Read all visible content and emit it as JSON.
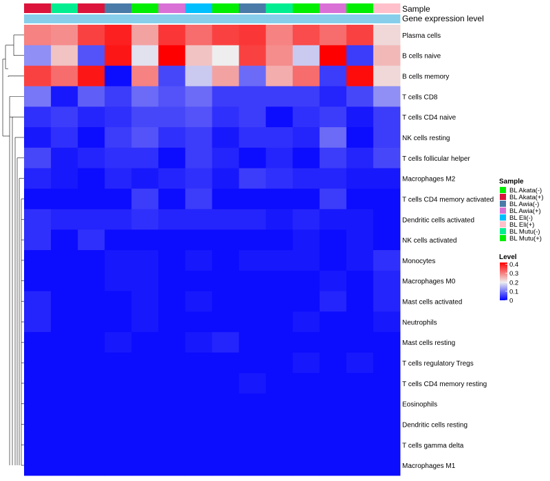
{
  "chart_data": {
    "type": "heatmap",
    "title": "",
    "annotation_labels": [
      "Sample",
      "Gene expression level"
    ],
    "samples": [
      "BL Akata(+)",
      "BL Mutu(-)",
      "BL Akata(+)",
      "BL Awia(-)",
      "BL Akata(-)",
      "BL Awia(+)",
      "BL Eli(-)",
      "BL Mutu(+)",
      "BL Awia(-)",
      "BL Mutu(-)",
      "BL Akata(-)",
      "BL Awia(+)",
      "BL Mutu(+)",
      "BL Eli(+)"
    ],
    "sample_annotation_colors": [
      "#DC143C",
      "#00EE90",
      "#DC143C",
      "#4A7BA8",
      "#00EE00",
      "#DA70D6",
      "#00BFFF",
      "#00EE00",
      "#4A7BA8",
      "#00EE90",
      "#00EE00",
      "#DA70D6",
      "#00EE00",
      "#FFC0CB"
    ],
    "gene_expression_level_colors": [
      "#87CEEB",
      "#87CEEB",
      "#87CEEB",
      "#87CEEB",
      "#87CEEB",
      "#87CEEB",
      "#87CEEB",
      "#87CEEB",
      "#87CEEB",
      "#87CEEB",
      "#87CEEB",
      "#87CEEB",
      "#87CEEB",
      "#87CEEB"
    ],
    "rows": [
      "Plasma cells",
      "B cells naive",
      "B cells memory",
      "T cells CD8",
      "T cells CD4 naive",
      "NK cells resting",
      "T cells follicular helper",
      "Macrophages M2",
      "T cells CD4 memory activated",
      "Dendritic cells activated",
      "NK cells activated",
      "Monocytes",
      "Macrophages M0",
      "Mast cells activated",
      "Neutrophils",
      "Mast cells resting",
      "T cells regulatory  Tregs",
      "T cells CD4 memory resting",
      "Eosinophils",
      "Dendritic cells resting",
      "T cells gamma delta",
      "Macrophages M1"
    ],
    "values": [
      [
        0.3,
        0.29,
        0.36,
        0.39,
        0.27,
        0.37,
        0.32,
        0.36,
        0.37,
        0.3,
        0.35,
        0.32,
        0.36,
        0.22
      ],
      [
        0.12,
        0.24,
        0.07,
        0.4,
        0.19,
        0.42,
        0.24,
        0.2,
        0.36,
        0.29,
        0.17,
        0.42,
        0.05,
        0.25
      ],
      [
        0.36,
        0.32,
        0.4,
        0.01,
        0.3,
        0.06,
        0.17,
        0.27,
        0.09,
        0.26,
        0.32,
        0.05,
        0.41,
        0.22
      ],
      [
        0.1,
        0.02,
        0.08,
        0.05,
        0.09,
        0.07,
        0.09,
        0.05,
        0.05,
        0.05,
        0.05,
        0.03,
        0.06,
        0.12
      ],
      [
        0.04,
        0.05,
        0.03,
        0.04,
        0.06,
        0.06,
        0.07,
        0.04,
        0.05,
        0.01,
        0.04,
        0.05,
        0.02,
        0.05
      ],
      [
        0.02,
        0.04,
        0.01,
        0.05,
        0.07,
        0.04,
        0.05,
        0.02,
        0.04,
        0.04,
        0.03,
        0.09,
        0.01,
        0.05
      ],
      [
        0.06,
        0.02,
        0.03,
        0.04,
        0.04,
        0.01,
        0.05,
        0.03,
        0.01,
        0.03,
        0.01,
        0.05,
        0.03,
        0.06
      ],
      [
        0.03,
        0.02,
        0.01,
        0.03,
        0.02,
        0.03,
        0.04,
        0.02,
        0.05,
        0.04,
        0.03,
        0.03,
        0.02,
        0.02
      ],
      [
        0.01,
        0.01,
        0.01,
        0.01,
        0.05,
        0.01,
        0.05,
        0.01,
        0.01,
        0.01,
        0.01,
        0.05,
        0.01,
        0.01
      ],
      [
        0.04,
        0.03,
        0.03,
        0.03,
        0.04,
        0.03,
        0.03,
        0.03,
        0.03,
        0.02,
        0.03,
        0.02,
        0.02,
        0.01
      ],
      [
        0.04,
        0.01,
        0.04,
        0.01,
        0.01,
        0.01,
        0.01,
        0.01,
        0.01,
        0.01,
        0.02,
        0.01,
        0.02,
        0.01
      ],
      [
        0.01,
        0.01,
        0.01,
        0.02,
        0.02,
        0.01,
        0.02,
        0.01,
        0.02,
        0.02,
        0.02,
        0.01,
        0.02,
        0.04
      ],
      [
        0.01,
        0.01,
        0.01,
        0.02,
        0.02,
        0.01,
        0.01,
        0.01,
        0.01,
        0.01,
        0.01,
        0.02,
        0.01,
        0.03
      ],
      [
        0.03,
        0.01,
        0.01,
        0.01,
        0.02,
        0.01,
        0.02,
        0.01,
        0.01,
        0.01,
        0.01,
        0.03,
        0.01,
        0.03
      ],
      [
        0.03,
        0.01,
        0.01,
        0.01,
        0.02,
        0.01,
        0.01,
        0.01,
        0.01,
        0.01,
        0.02,
        0.01,
        0.01,
        0.02
      ],
      [
        0.01,
        0.01,
        0.01,
        0.02,
        0.01,
        0.01,
        0.02,
        0.03,
        0.01,
        0.01,
        0.01,
        0.01,
        0.01,
        0.01
      ],
      [
        0.01,
        0.01,
        0.01,
        0.01,
        0.01,
        0.01,
        0.01,
        0.01,
        0.01,
        0.01,
        0.02,
        0.01,
        0.02,
        0.01
      ],
      [
        0.01,
        0.01,
        0.01,
        0.01,
        0.01,
        0.01,
        0.01,
        0.01,
        0.02,
        0.01,
        0.01,
        0.01,
        0.01,
        0.01
      ],
      [
        0.01,
        0.01,
        0.01,
        0.01,
        0.01,
        0.01,
        0.01,
        0.01,
        0.01,
        0.01,
        0.01,
        0.01,
        0.01,
        0.01
      ],
      [
        0.01,
        0.01,
        0.01,
        0.01,
        0.01,
        0.01,
        0.01,
        0.01,
        0.01,
        0.01,
        0.01,
        0.01,
        0.01,
        0.01
      ],
      [
        0.01,
        0.01,
        0.01,
        0.01,
        0.01,
        0.01,
        0.01,
        0.01,
        0.01,
        0.01,
        0.01,
        0.01,
        0.01,
        0.01
      ],
      [
        0.01,
        0.01,
        0.01,
        0.01,
        0.01,
        0.01,
        0.01,
        0.01,
        0.01,
        0.01,
        0.01,
        0.01,
        0.01,
        0.01
      ]
    ],
    "color_scale": {
      "min": 0,
      "max": 0.42,
      "stops": [
        {
          "value": 0.0,
          "color": "#0000FF"
        },
        {
          "value": 0.2,
          "color": "#EEEEEE"
        },
        {
          "value": 0.42,
          "color": "#FF0000"
        }
      ]
    },
    "legend_sample": {
      "title": "Sample",
      "entries": [
        {
          "label": "BL Akata(-)",
          "color": "#00EE00"
        },
        {
          "label": "BL Akata(+)",
          "color": "#DC143C"
        },
        {
          "label": "BL Awia(-)",
          "color": "#4A7BA8"
        },
        {
          "label": "BL Awia(+)",
          "color": "#DA70D6"
        },
        {
          "label": "BL Eli(-)",
          "color": "#00BFFF"
        },
        {
          "label": "BL Eli(+)",
          "color": "#FFC0CB"
        },
        {
          "label": "BL Mutu(-)",
          "color": "#00EE90"
        },
        {
          "label": "BL Mutu(+)",
          "color": "#00EE00"
        }
      ]
    },
    "legend_level": {
      "title": "Level",
      "ticks": [
        "0.4",
        "0.3",
        "0.2",
        "0.1",
        "0"
      ],
      "tick_values": [
        0.4,
        0.3,
        0.2,
        0.1,
        0
      ]
    },
    "row_dendrogram": true
  }
}
